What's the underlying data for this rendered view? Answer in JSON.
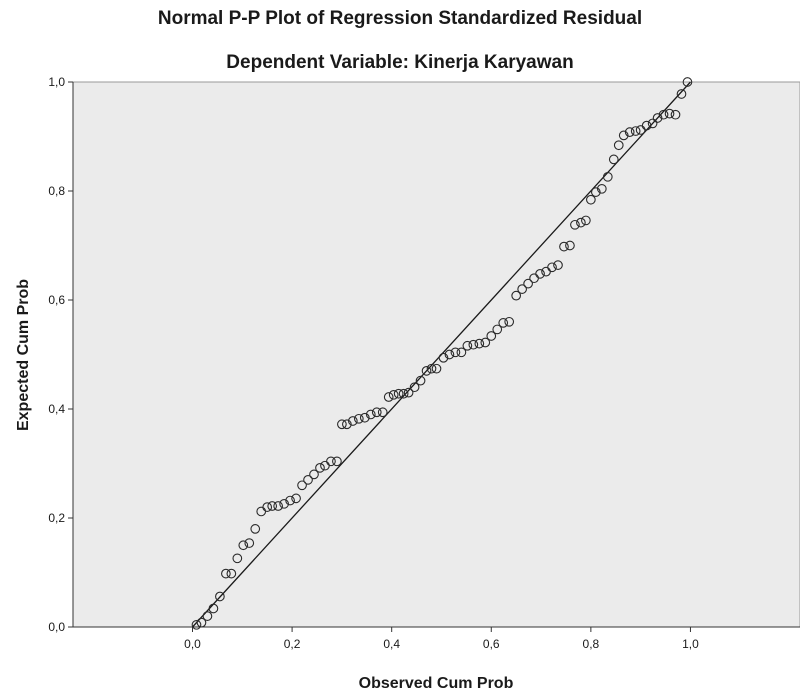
{
  "chart_data": {
    "type": "scatter",
    "title": "Normal P-P Plot of Regression Standardized Residual",
    "subtitle": "Dependent Variable: Kinerja Karyawan",
    "xlabel": "Observed Cum Prob",
    "ylabel": "Expected Cum Prob",
    "xlim": [
      -0.24,
      1.22
    ],
    "ylim": [
      0.0,
      1.0
    ],
    "xticks": [
      "0,0",
      "0,2",
      "0,4",
      "0,6",
      "0,8",
      "1,0"
    ],
    "yticks": [
      "0,0",
      "0,2",
      "0,4",
      "0,6",
      "0,8",
      "1,0"
    ],
    "reference_line": {
      "from": [
        0.0,
        0.0
      ],
      "to": [
        1.0,
        1.0
      ]
    },
    "grid": false,
    "legend": "none",
    "colors": {
      "plot_background": "#ebebeb",
      "marker_edge": "#2a2a2a",
      "line": "#1a1a1a"
    },
    "points": [
      [
        0.008,
        0.004
      ],
      [
        0.018,
        0.008
      ],
      [
        0.03,
        0.02
      ],
      [
        0.042,
        0.034
      ],
      [
        0.055,
        0.056
      ],
      [
        0.067,
        0.098
      ],
      [
        0.078,
        0.098
      ],
      [
        0.09,
        0.126
      ],
      [
        0.102,
        0.15
      ],
      [
        0.114,
        0.154
      ],
      [
        0.126,
        0.18
      ],
      [
        0.138,
        0.212
      ],
      [
        0.15,
        0.22
      ],
      [
        0.16,
        0.222
      ],
      [
        0.172,
        0.222
      ],
      [
        0.184,
        0.226
      ],
      [
        0.196,
        0.232
      ],
      [
        0.208,
        0.236
      ],
      [
        0.22,
        0.26
      ],
      [
        0.232,
        0.27
      ],
      [
        0.244,
        0.28
      ],
      [
        0.256,
        0.292
      ],
      [
        0.266,
        0.296
      ],
      [
        0.278,
        0.304
      ],
      [
        0.29,
        0.304
      ],
      [
        0.3,
        0.372
      ],
      [
        0.31,
        0.372
      ],
      [
        0.322,
        0.378
      ],
      [
        0.334,
        0.382
      ],
      [
        0.346,
        0.384
      ],
      [
        0.358,
        0.39
      ],
      [
        0.37,
        0.394
      ],
      [
        0.382,
        0.394
      ],
      [
        0.394,
        0.422
      ],
      [
        0.404,
        0.426
      ],
      [
        0.414,
        0.428
      ],
      [
        0.424,
        0.428
      ],
      [
        0.434,
        0.43
      ],
      [
        0.446,
        0.44
      ],
      [
        0.458,
        0.452
      ],
      [
        0.47,
        0.47
      ],
      [
        0.48,
        0.474
      ],
      [
        0.49,
        0.474
      ],
      [
        0.504,
        0.494
      ],
      [
        0.516,
        0.5
      ],
      [
        0.528,
        0.504
      ],
      [
        0.54,
        0.504
      ],
      [
        0.552,
        0.516
      ],
      [
        0.564,
        0.518
      ],
      [
        0.576,
        0.52
      ],
      [
        0.588,
        0.522
      ],
      [
        0.6,
        0.534
      ],
      [
        0.612,
        0.546
      ],
      [
        0.624,
        0.558
      ],
      [
        0.636,
        0.56
      ],
      [
        0.65,
        0.608
      ],
      [
        0.662,
        0.62
      ],
      [
        0.674,
        0.63
      ],
      [
        0.686,
        0.64
      ],
      [
        0.698,
        0.648
      ],
      [
        0.71,
        0.652
      ],
      [
        0.722,
        0.66
      ],
      [
        0.734,
        0.664
      ],
      [
        0.746,
        0.698
      ],
      [
        0.758,
        0.7
      ],
      [
        0.768,
        0.738
      ],
      [
        0.78,
        0.742
      ],
      [
        0.79,
        0.746
      ],
      [
        0.8,
        0.784
      ],
      [
        0.81,
        0.798
      ],
      [
        0.822,
        0.804
      ],
      [
        0.834,
        0.826
      ],
      [
        0.846,
        0.858
      ],
      [
        0.856,
        0.884
      ],
      [
        0.866,
        0.902
      ],
      [
        0.878,
        0.908
      ],
      [
        0.89,
        0.91
      ],
      [
        0.9,
        0.912
      ],
      [
        0.912,
        0.92
      ],
      [
        0.924,
        0.924
      ],
      [
        0.934,
        0.934
      ],
      [
        0.946,
        0.94
      ],
      [
        0.958,
        0.942
      ],
      [
        0.97,
        0.94
      ],
      [
        0.982,
        0.978
      ],
      [
        0.994,
        1.0
      ]
    ]
  }
}
